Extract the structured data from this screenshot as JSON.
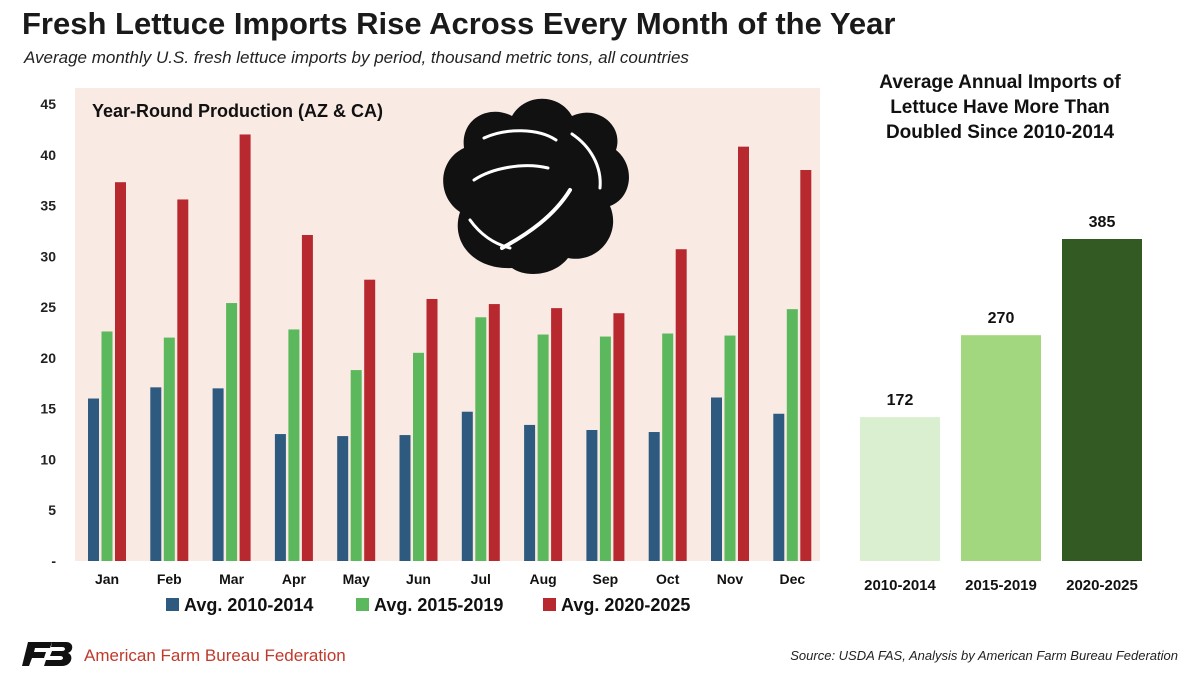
{
  "header": {
    "title": "Fresh Lettuce Imports Rise Across Every Month of the Year",
    "subtitle": "Average monthly U.S. fresh lettuce imports by period, thousand metric tons, all countries"
  },
  "footer": {
    "org": "American Farm Bureau Federation",
    "source": "Source: USDA FAS, Analysis by American Farm Bureau Federation"
  },
  "icons": {
    "logo": "fb-logo-icon",
    "lettuce": "lettuce-head-icon"
  },
  "chart_data": [
    {
      "type": "bar",
      "title": "Year-Round Production (AZ & CA)",
      "categories": [
        "Jan",
        "Feb",
        "Mar",
        "Apr",
        "May",
        "Jun",
        "Jul",
        "Aug",
        "Sep",
        "Oct",
        "Nov",
        "Dec"
      ],
      "series": [
        {
          "name": "Avg. 2010-2014",
          "color": "#2e5a80",
          "values": [
            16.0,
            17.1,
            17.0,
            12.5,
            12.3,
            12.4,
            14.7,
            13.4,
            12.9,
            12.7,
            16.1,
            14.5
          ]
        },
        {
          "name": "Avg. 2015-2019",
          "color": "#5cb85c",
          "values": [
            22.6,
            22.0,
            25.4,
            22.8,
            18.8,
            20.5,
            24.0,
            22.3,
            22.1,
            22.4,
            22.2,
            24.8
          ]
        },
        {
          "name": "Avg. 2020-2025",
          "color": "#b8292f",
          "values": [
            37.3,
            35.6,
            42.0,
            32.1,
            27.7,
            25.8,
            25.3,
            24.9,
            24.4,
            30.7,
            40.8,
            38.5
          ]
        }
      ],
      "ylim": [
        0,
        45
      ],
      "yticks": [
        "-",
        "5",
        "10",
        "15",
        "20",
        "25",
        "30",
        "35",
        "40",
        "45"
      ],
      "legend": "bottom",
      "background": "#f9ebe4"
    },
    {
      "type": "bar",
      "title": "Average Annual Imports of Lettuce Have More Than Doubled Since 2010-2014",
      "categories": [
        "2010-2014",
        "2015-2019",
        "2020-2025"
      ],
      "values": [
        172,
        270,
        385
      ],
      "data_labels": [
        "172",
        "270",
        "385"
      ],
      "colors": [
        "#d9efd0",
        "#a3d77f",
        "#335a23"
      ],
      "ylim": [
        0,
        470
      ]
    }
  ]
}
